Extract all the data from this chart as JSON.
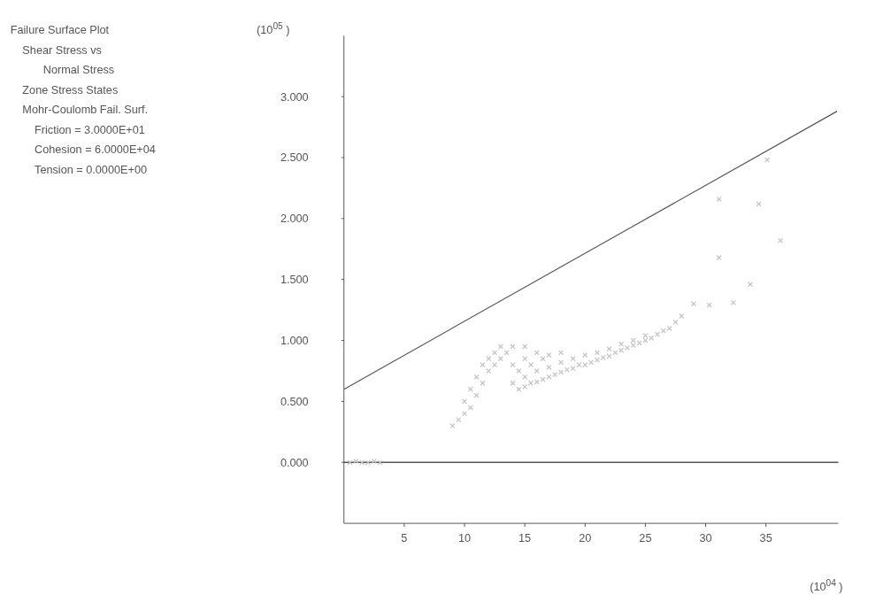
{
  "chart_data": {
    "type": "scatter",
    "title": "Failure Surface Plot",
    "annotations": [
      "Shear Stress vs",
      "Normal Stress",
      "Zone Stress States",
      "Mohr-Coulomb Fail. Surf.",
      "Friction =  3.0000E+01",
      "Cohesion =  6.0000E+04",
      "Tension  =  0.0000E+00"
    ],
    "ylabel": "(10$^{05}$ )",
    "xlabel": "(10$^{04}$ )",
    "xlim": [
      0,
      41
    ],
    "ylim": [
      -0.5,
      3.5
    ],
    "xticks": [
      5,
      10,
      15,
      20,
      25,
      30,
      35
    ],
    "yticks": [
      {
        "value": 0,
        "label": "0.000"
      },
      {
        "value": 0.5,
        "label": "0.500"
      },
      {
        "value": 1,
        "label": "1.000"
      },
      {
        "value": 1.5,
        "label": "1.500"
      },
      {
        "value": 2,
        "label": "2.000"
      },
      {
        "value": 2.5,
        "label": "2.500"
      },
      {
        "value": 3,
        "label": "3.000"
      }
    ],
    "grid": false,
    "ref_lines": [
      {
        "axis": "y",
        "value": 0,
        "color": "#555555"
      }
    ],
    "series": [
      {
        "type": "scatter",
        "color": "#c4c4c4",
        "marker": "cross",
        "x": [
          0.5,
          1,
          1.5,
          2,
          2.5,
          3,
          9,
          9.5,
          10,
          10,
          10.5,
          10.5,
          11,
          11,
          11.5,
          11.5,
          12,
          12,
          12.5,
          12.5,
          13,
          13,
          13.5,
          14,
          14,
          14,
          14.5,
          14.5,
          15,
          15,
          15,
          15,
          15.5,
          15.5,
          16,
          16,
          16,
          16.5,
          16.5,
          17,
          17,
          17,
          17.5,
          18,
          18,
          18,
          18.5,
          19,
          19,
          19.5,
          20,
          20,
          20.5,
          21,
          21,
          21.5,
          22,
          22,
          22.5,
          23,
          23,
          23.5,
          24,
          24,
          24.5,
          25,
          25,
          25.5,
          26,
          26.5,
          27,
          27.5,
          28,
          29,
          30.3,
          31.1,
          31.1,
          32.3,
          33.7,
          34.4,
          35.1,
          36.2
        ],
        "values": [
          0,
          0.01,
          0,
          0,
          0.01,
          0,
          0.3,
          0.35,
          0.4,
          0.5,
          0.45,
          0.6,
          0.55,
          0.7,
          0.65,
          0.8,
          0.75,
          0.85,
          0.8,
          0.9,
          0.85,
          0.95,
          0.9,
          0.95,
          0.8,
          0.65,
          0.6,
          0.75,
          0.62,
          0.7,
          0.85,
          0.95,
          0.65,
          0.8,
          0.66,
          0.75,
          0.9,
          0.68,
          0.85,
          0.7,
          0.78,
          0.88,
          0.72,
          0.74,
          0.82,
          0.9,
          0.76,
          0.77,
          0.85,
          0.8,
          0.8,
          0.88,
          0.82,
          0.84,
          0.9,
          0.86,
          0.87,
          0.93,
          0.9,
          0.92,
          0.97,
          0.94,
          0.96,
          1.0,
          0.98,
          1.0,
          1.04,
          1.02,
          1.05,
          1.08,
          1.1,
          1.15,
          1.2,
          1.3,
          1.29,
          1.68,
          2.16,
          1.31,
          1.46,
          2.12,
          2.48,
          1.82
        ]
      },
      {
        "type": "line",
        "color": "#555555",
        "marker": "none",
        "x": [
          0,
          40.9
        ],
        "values": [
          0.6,
          2.88
        ]
      }
    ]
  }
}
